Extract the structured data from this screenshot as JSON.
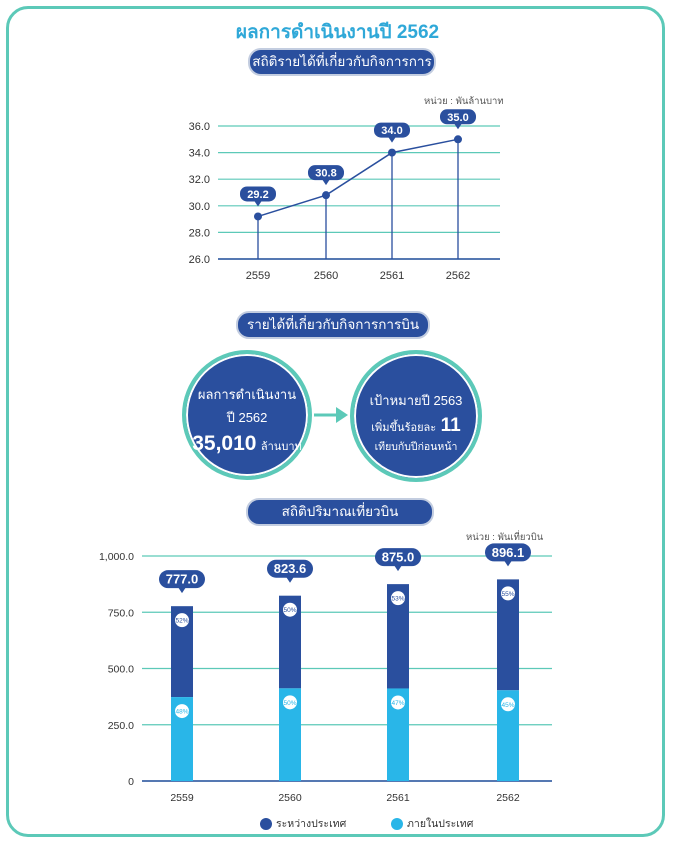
{
  "page": {
    "title": "ผลการดำเนินงานปี 2562"
  },
  "colors": {
    "navy": "#2a4f9e",
    "teal": "#5cc9b8",
    "cyan": "#29b6e8",
    "grid": "#5cc9b8"
  },
  "section1": {
    "title": "สถิติรายได้ที่เกี่ยวกับกิจการการบิน",
    "unit": "หน่วย : พันล้านบาท"
  },
  "section2": {
    "title": "รายได้ที่เกี่ยวกับกิจการการบิน",
    "left_circle": {
      "line1": "ผลการดำเนินงาน",
      "line2": "ปี 2562",
      "value": "35,010",
      "unit": "ล้านบาท"
    },
    "right_circle": {
      "line1": "เป้าหมายปี 2563",
      "line2_prefix": "เพิ่มขึ้นร้อยละ",
      "line2_value": "11",
      "line3": "เทียบกับปีก่อนหน้า"
    }
  },
  "section3": {
    "title": "สถิติปริมาณเที่ยวบิน",
    "unit": "หน่วย : พันเที่ยวบิน",
    "legend": [
      {
        "label": "ระหว่างประเทศ",
        "color": "#2a4f9e"
      },
      {
        "label": "ภายในประเทศ",
        "color": "#29b6e8"
      }
    ]
  },
  "chart_data": [
    {
      "type": "line",
      "title": "สถิติรายได้ที่เกี่ยวกับกิจการการบิน",
      "categories": [
        "2559",
        "2560",
        "2561",
        "2562"
      ],
      "values": [
        29.2,
        30.8,
        34.0,
        35.0
      ],
      "value_labels": [
        "29.2",
        "30.8",
        "34.0",
        "35.0"
      ],
      "ylim": [
        26.0,
        36.0
      ],
      "yticks": [
        "26.0",
        "28.0",
        "30.0",
        "32.0",
        "34.0",
        "36.0"
      ],
      "ylabel": "หน่วย : พันล้านบาท",
      "grid": true
    },
    {
      "type": "bar",
      "stacked": true,
      "title": "สถิติปริมาณเที่ยวบิน",
      "categories": [
        "2559",
        "2560",
        "2561",
        "2562"
      ],
      "totals": [
        777.0,
        823.6,
        875.0,
        896.1
      ],
      "total_labels": [
        "777.0",
        "823.6",
        "875.0",
        "896.1"
      ],
      "series": [
        {
          "name": "ภายในประเทศ",
          "percent": [
            48,
            50,
            47,
            45
          ],
          "labels": [
            "48%",
            "50%",
            "47%",
            "45%"
          ]
        },
        {
          "name": "ระหว่างประเทศ",
          "percent": [
            52,
            50,
            53,
            55
          ],
          "labels": [
            "52%",
            "50%",
            "53%",
            "55%"
          ]
        }
      ],
      "ylim": [
        0,
        1000
      ],
      "yticks": [
        "0",
        "250.0",
        "500.0",
        "750.0",
        "1,000.0"
      ],
      "ylabel": "หน่วย : พันเที่ยวบิน",
      "grid": true
    }
  ]
}
